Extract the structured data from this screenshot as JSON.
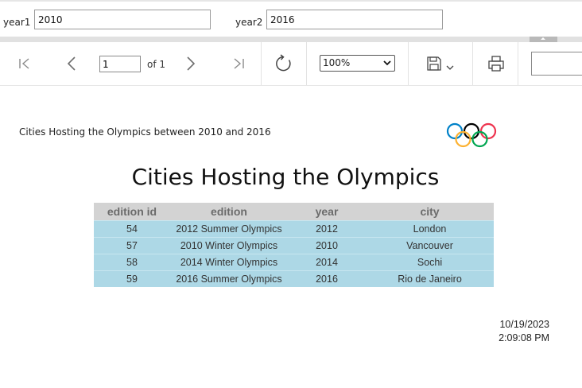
{
  "parameters": {
    "year1": {
      "label": "year1",
      "value": "2010"
    },
    "year2": {
      "label": "year2",
      "value": "2016"
    }
  },
  "toolbar": {
    "page_number": "1",
    "page_of": "of 1",
    "zoom": "100%",
    "icons": [
      "first-page-icon",
      "previous-page-icon",
      "next-page-icon",
      "last-page-icon",
      "refresh-icon",
      "save-icon",
      "print-icon"
    ]
  },
  "report": {
    "header_text": "Cities Hosting the Olympics between 2010 and 2016",
    "title": "Cities Hosting the Olympics",
    "table": {
      "columns": [
        "edition id",
        "edition",
        "year",
        "city"
      ],
      "rows": [
        [
          "54",
          "2012 Summer Olympics",
          "2012",
          "London"
        ],
        [
          "57",
          "2010 Winter Olympics",
          "2010",
          "Vancouver"
        ],
        [
          "58",
          "2014 Winter Olympics",
          "2014",
          "Sochi"
        ],
        [
          "59",
          "2016 Summer Olympics",
          "2016",
          "Rio de Janeiro"
        ]
      ]
    },
    "date": "10/19/2023",
    "time": "2:09:08 PM",
    "ring_colors": [
      "#0081c8",
      "#000000",
      "#ee334e",
      "#fcb131",
      "#00a651"
    ]
  }
}
